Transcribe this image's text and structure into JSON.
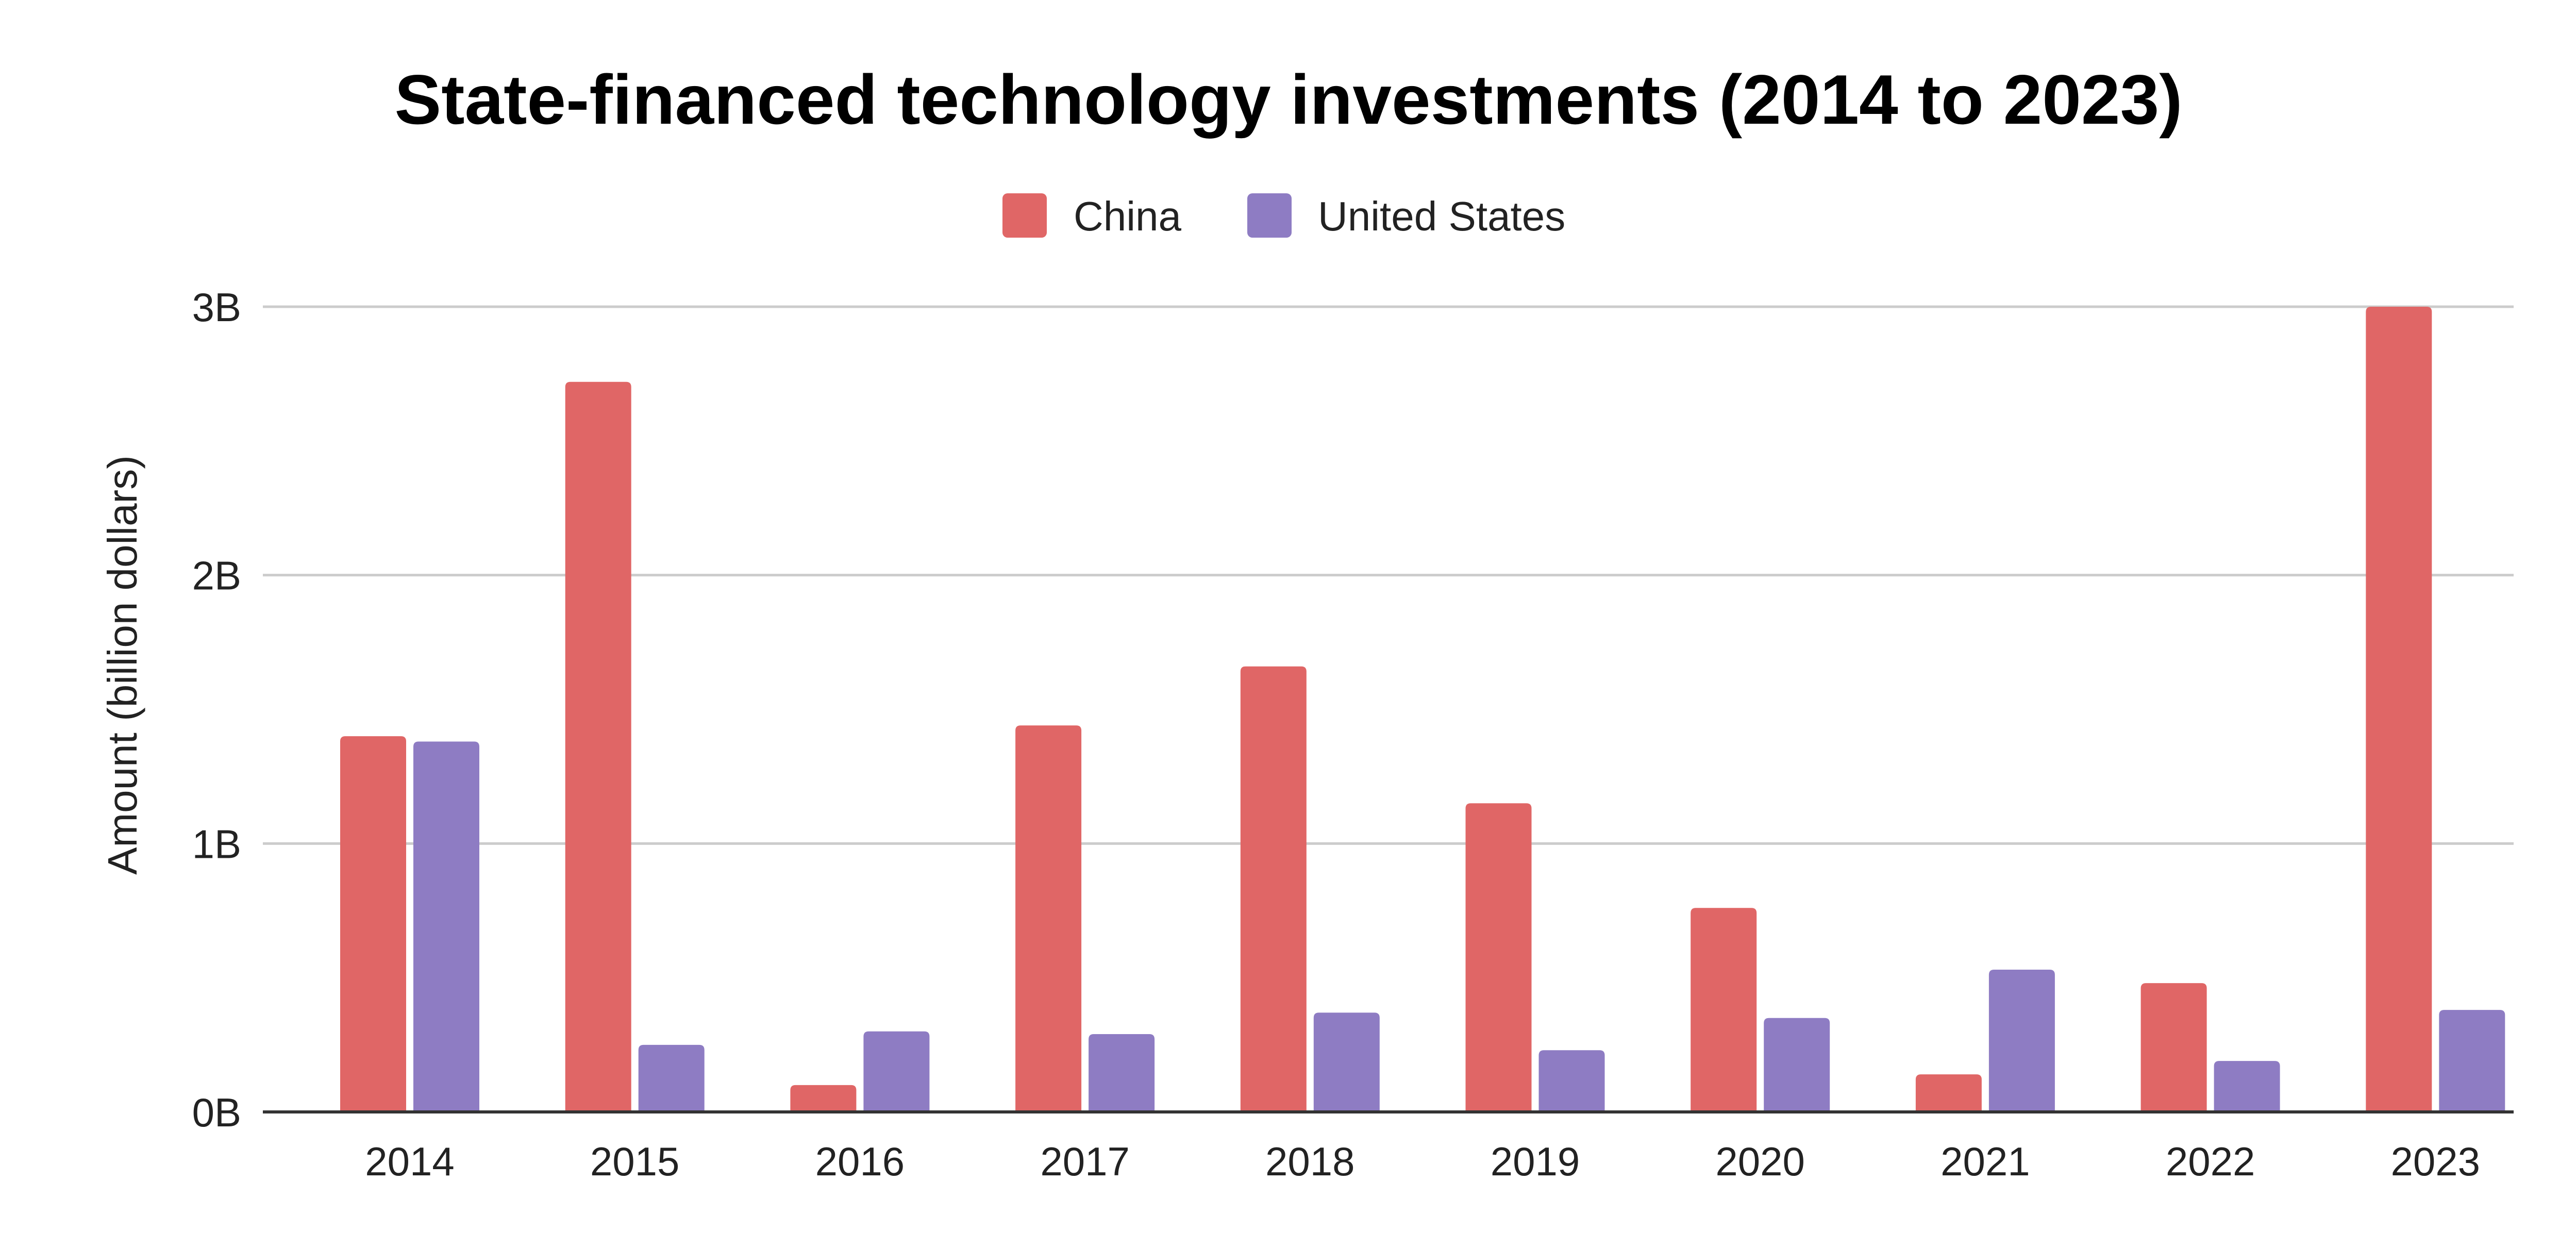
{
  "chart_data": {
    "type": "bar",
    "title": "State-financed technology investments (2014 to 2023)",
    "xlabel": "",
    "ylabel": "Amount (billion dollars)",
    "categories": [
      "2014",
      "2015",
      "2016",
      "2017",
      "2018",
      "2019",
      "2020",
      "2021",
      "2022",
      "2023"
    ],
    "series": [
      {
        "name": "China",
        "color": "#e06666",
        "values": [
          1.4,
          2.72,
          0.1,
          1.44,
          1.66,
          1.15,
          0.76,
          0.14,
          0.48,
          3.0
        ]
      },
      {
        "name": "United States",
        "color": "#8e7cc3",
        "values": [
          1.38,
          0.25,
          0.3,
          0.29,
          0.37,
          0.23,
          0.35,
          0.53,
          0.19,
          0.38
        ]
      }
    ],
    "ylim": [
      0,
      3
    ],
    "yticks": [
      {
        "value": 0,
        "label": "0B"
      },
      {
        "value": 1,
        "label": "1B"
      },
      {
        "value": 2,
        "label": "2B"
      },
      {
        "value": 3,
        "label": "3B"
      }
    ],
    "legend_position": "top-center",
    "grid": true
  }
}
